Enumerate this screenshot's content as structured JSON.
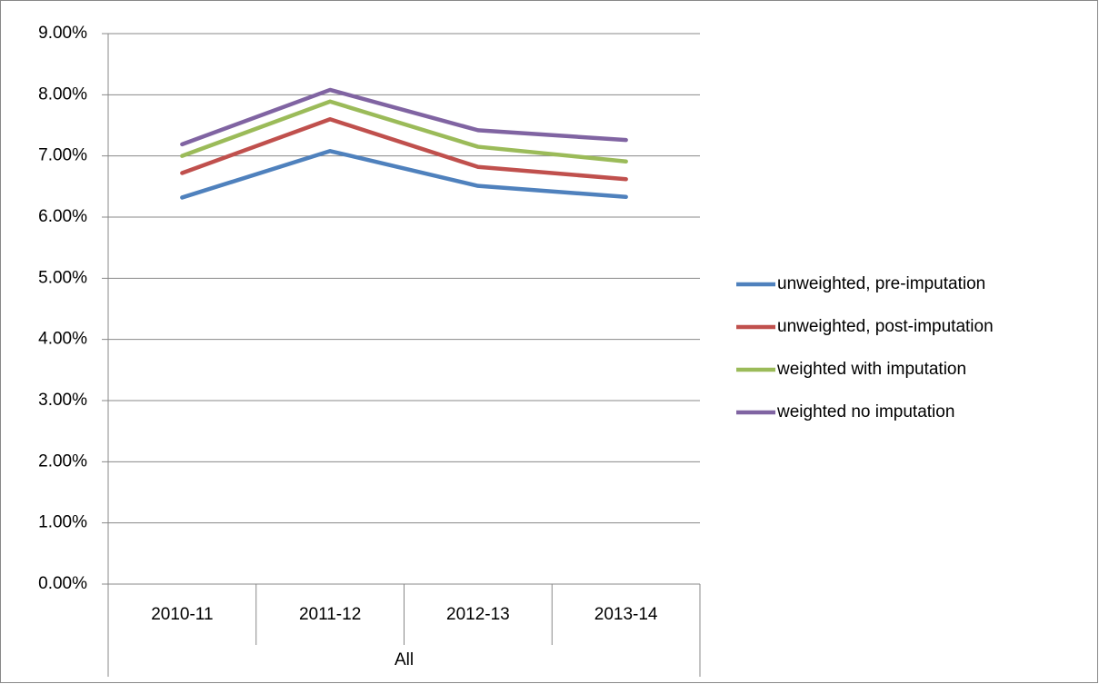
{
  "chart_data": {
    "type": "line",
    "categories": [
      "2010-11",
      "2011-12",
      "2012-13",
      "2013-14"
    ],
    "category_group": "All",
    "series": [
      {
        "name": "unweighted, pre-imputation",
        "color": "#4f81bd",
        "values": [
          6.32,
          7.08,
          6.51,
          6.33
        ]
      },
      {
        "name": "unweighted, post-imputation",
        "color": "#c0504d",
        "values": [
          6.72,
          7.6,
          6.82,
          6.62
        ]
      },
      {
        "name": "weighted with imputation",
        "color": "#9bbb59",
        "values": [
          7.0,
          7.89,
          7.15,
          6.91
        ]
      },
      {
        "name": "weighted no imputation",
        "color": "#8064a2",
        "values": [
          7.19,
          8.08,
          7.42,
          7.26
        ]
      }
    ],
    "ylim": [
      0,
      9
    ],
    "yticks": [
      {
        "value": 0,
        "label": "0.00%"
      },
      {
        "value": 1,
        "label": "1.00%"
      },
      {
        "value": 2,
        "label": "2.00%"
      },
      {
        "value": 3,
        "label": "3.00%"
      },
      {
        "value": 4,
        "label": "4.00%"
      },
      {
        "value": 5,
        "label": "5.00%"
      },
      {
        "value": 6,
        "label": "6.00%"
      },
      {
        "value": 7,
        "label": "7.00%"
      },
      {
        "value": 8,
        "label": "8.00%"
      },
      {
        "value": 9,
        "label": "9.00%"
      }
    ],
    "grid": true,
    "legend": "right"
  }
}
